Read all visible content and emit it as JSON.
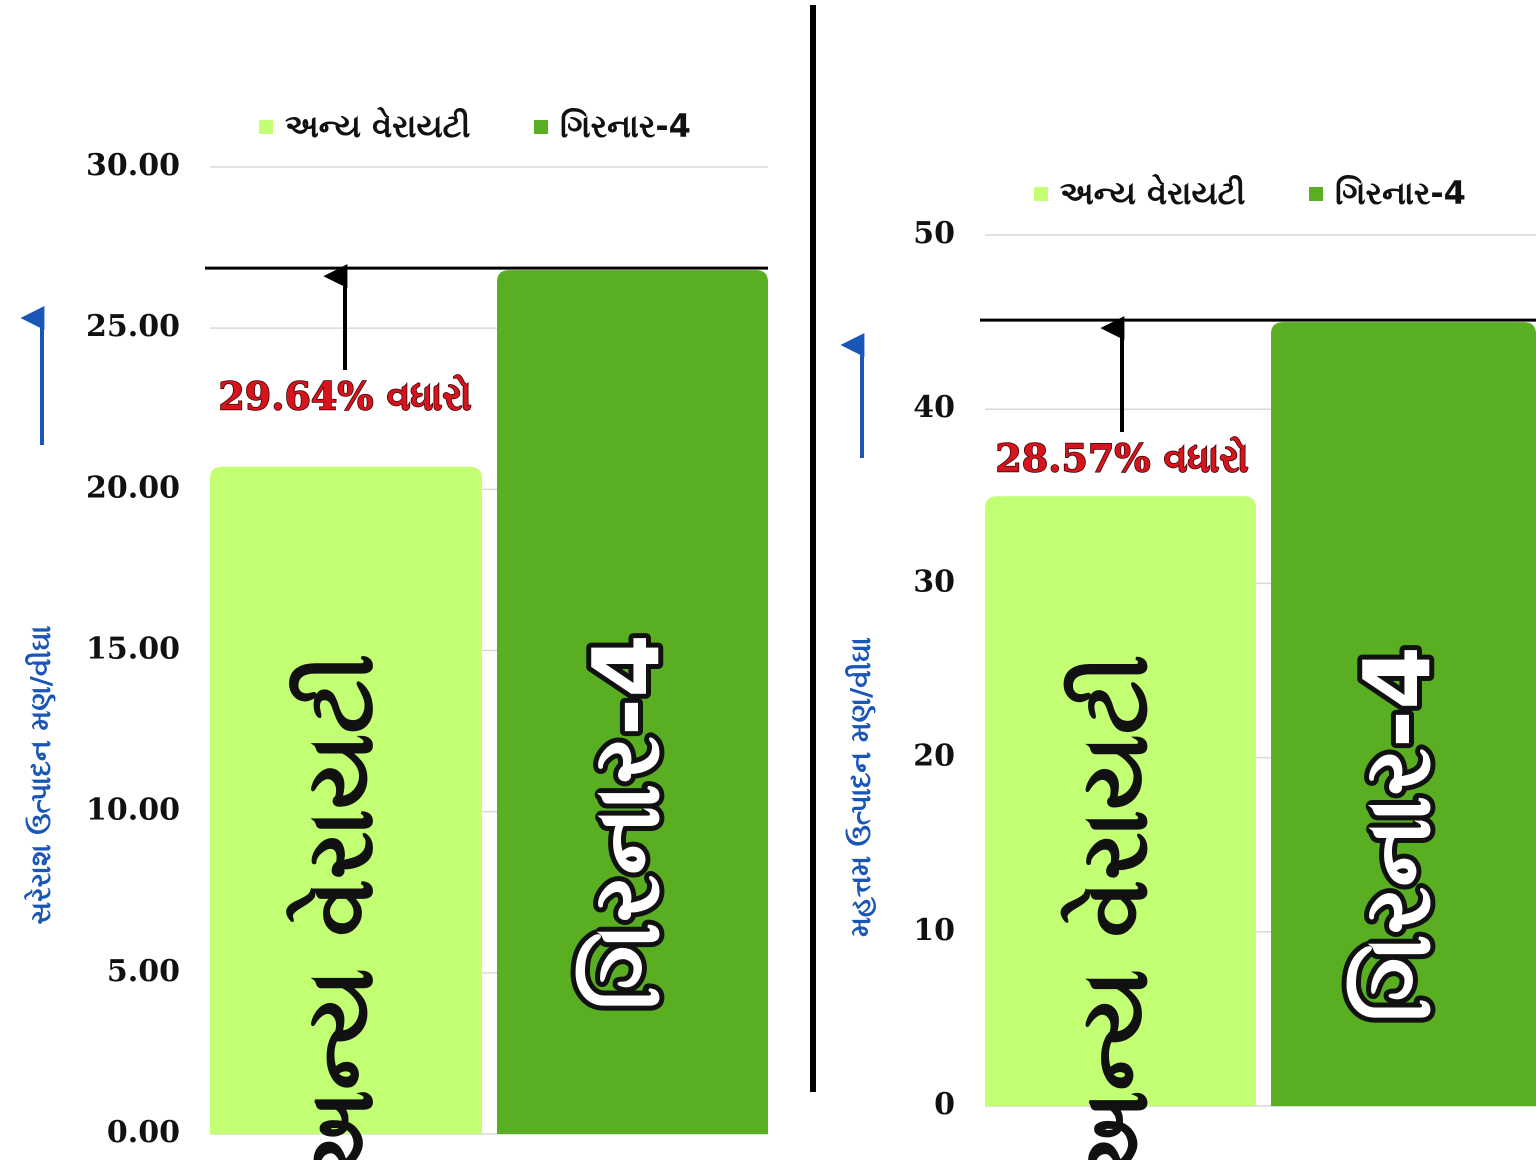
{
  "chart_data": [
    {
      "type": "bar",
      "y_label": "સરેરાશ ઉત્પાદન મણ/વીઘા",
      "categories": [
        "અન્ય વેરાયટી",
        "ગિરનાર-4"
      ],
      "values": [
        20.7,
        26.8
      ],
      "colors": [
        "#c2ff72",
        "#5aae22"
      ],
      "annotation": "29.64% વધારો",
      "ylim": [
        0,
        30
      ],
      "yticks": [
        {
          "value": 0,
          "label": "0.00"
        },
        {
          "value": 5,
          "label": "5.00"
        },
        {
          "value": 10,
          "label": "10.00"
        },
        {
          "value": 15,
          "label": "15.00"
        },
        {
          "value": 20,
          "label": "20.00"
        },
        {
          "value": 25,
          "label": "25.00"
        },
        {
          "value": 30,
          "label": "30.00"
        }
      ],
      "grid": true
    },
    {
      "type": "bar",
      "y_label": "મહત્તમ ઉત્પાદન મણ/વીઘા",
      "categories": [
        "અન્ય વેરાયટી",
        "ગિરનાર-4"
      ],
      "values": [
        35,
        45
      ],
      "colors": [
        "#c2ff72",
        "#5aae22"
      ],
      "annotation": "28.57% વધારો",
      "ylim": [
        0,
        50
      ],
      "yticks": [
        0,
        10,
        20,
        30,
        40,
        50
      ],
      "grid": true
    }
  ]
}
